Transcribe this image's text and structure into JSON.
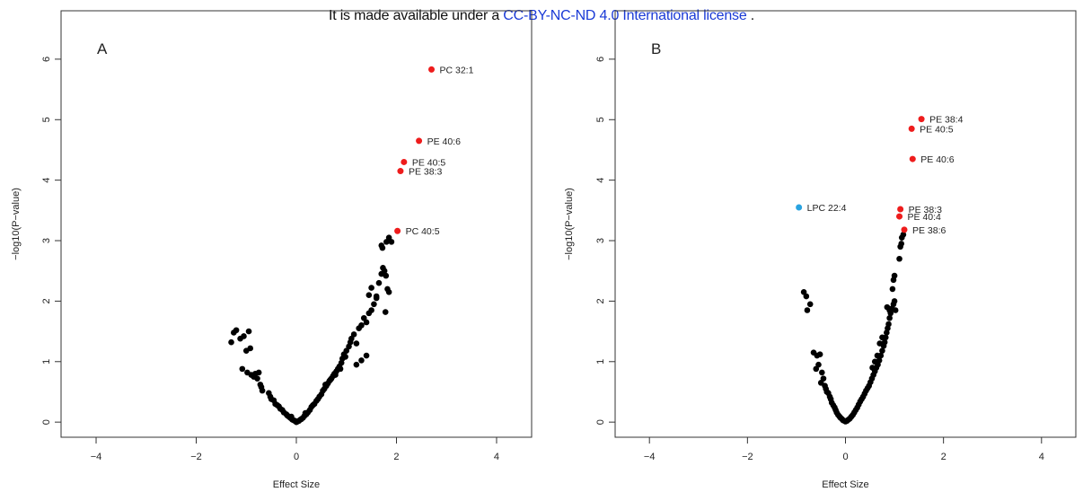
{
  "banner": {
    "prefix": "It is made available under a ",
    "link": "CC-BY-NC-ND 4.0 International license",
    "suffix": " ."
  },
  "colors": {
    "point": "#000000",
    "highlight_up": "#ee1c1c",
    "highlight_down": "#29a3e0"
  },
  "chart_data": [
    {
      "type": "scatter",
      "panel_label": "A",
      "xlabel": "Effect Size",
      "ylabel": "−log10(P−value)",
      "xlim": [
        -4.7,
        4.7
      ],
      "ylim": [
        -0.25,
        6.8
      ],
      "xticks": [
        -4,
        -2,
        0,
        2,
        4
      ],
      "yticks": [
        0,
        1,
        2,
        3,
        4,
        5,
        6
      ],
      "labeled_points": [
        {
          "label": "PC 32:1",
          "x": 2.7,
          "y": 5.83,
          "color": "#ee1c1c"
        },
        {
          "label": "PE 40:6",
          "x": 2.45,
          "y": 4.65,
          "color": "#ee1c1c"
        },
        {
          "label": "PE 40:5",
          "x": 2.15,
          "y": 4.3,
          "color": "#ee1c1c"
        },
        {
          "label": "PE 38:3",
          "x": 2.08,
          "y": 4.15,
          "color": "#ee1c1c"
        },
        {
          "label": "PC 40:5",
          "x": 2.02,
          "y": 3.16,
          "color": "#ee1c1c"
        }
      ],
      "points": [
        [
          -1.3,
          1.32
        ],
        [
          -1.25,
          1.48
        ],
        [
          -1.2,
          1.52
        ],
        [
          -1.12,
          1.38
        ],
        [
          -1.05,
          1.42
        ],
        [
          -1.0,
          1.18
        ],
        [
          -0.95,
          1.5
        ],
        [
          -0.92,
          1.22
        ],
        [
          -1.08,
          0.88
        ],
        [
          -0.98,
          0.82
        ],
        [
          -0.9,
          0.78
        ],
        [
          -0.85,
          0.75
        ],
        [
          -0.82,
          0.8
        ],
        [
          -0.78,
          0.72
        ],
        [
          -0.75,
          0.82
        ],
        [
          -0.72,
          0.62
        ],
        [
          -0.7,
          0.58
        ],
        [
          -0.68,
          0.52
        ],
        [
          -0.55,
          0.48
        ],
        [
          -0.52,
          0.42
        ],
        [
          -0.5,
          0.38
        ],
        [
          -0.45,
          0.36
        ],
        [
          -0.42,
          0.3
        ],
        [
          -0.38,
          0.28
        ],
        [
          -0.35,
          0.26
        ],
        [
          -0.32,
          0.22
        ],
        [
          -0.28,
          0.2
        ],
        [
          -0.25,
          0.16
        ],
        [
          -0.2,
          0.13
        ],
        [
          -0.18,
          0.11
        ],
        [
          -0.15,
          0.09
        ],
        [
          -0.12,
          0.07
        ],
        [
          -0.1,
          0.06
        ],
        [
          -0.08,
          0.04
        ],
        [
          -0.05,
          0.03
        ],
        [
          -0.03,
          0.02
        ],
        [
          0.0,
          0.01
        ],
        [
          0.02,
          0.01
        ],
        [
          0.05,
          0.02
        ],
        [
          0.08,
          0.04
        ],
        [
          0.1,
          0.05
        ],
        [
          0.13,
          0.07
        ],
        [
          0.16,
          0.1
        ],
        [
          0.2,
          0.13
        ],
        [
          0.23,
          0.16
        ],
        [
          0.27,
          0.2
        ],
        [
          0.3,
          0.25
        ],
        [
          0.33,
          0.28
        ],
        [
          0.36,
          0.3
        ],
        [
          0.4,
          0.35
        ],
        [
          0.43,
          0.38
        ],
        [
          0.46,
          0.42
        ],
        [
          0.5,
          0.46
        ],
        [
          0.53,
          0.52
        ],
        [
          0.56,
          0.55
        ],
        [
          0.6,
          0.6
        ],
        [
          0.63,
          0.64
        ],
        [
          0.66,
          0.68
        ],
        [
          0.7,
          0.72
        ],
        [
          0.73,
          0.76
        ],
        [
          0.76,
          0.8
        ],
        [
          0.8,
          0.84
        ],
        [
          0.83,
          0.88
        ],
        [
          0.86,
          0.92
        ],
        [
          0.9,
          0.98
        ],
        [
          0.92,
          1.05
        ],
        [
          0.95,
          1.12
        ],
        [
          0.98,
          1.08
        ],
        [
          1.0,
          1.18
        ],
        [
          1.05,
          1.25
        ],
        [
          1.08,
          1.32
        ],
        [
          1.1,
          1.38
        ],
        [
          1.15,
          1.45
        ],
        [
          1.2,
          1.3
        ],
        [
          1.25,
          1.55
        ],
        [
          1.3,
          1.6
        ],
        [
          1.35,
          1.72
        ],
        [
          1.4,
          1.65
        ],
        [
          1.45,
          1.8
        ],
        [
          1.5,
          1.85
        ],
        [
          1.3,
          1.02
        ],
        [
          1.4,
          1.1
        ],
        [
          1.2,
          0.95
        ],
        [
          1.45,
          2.1
        ],
        [
          1.5,
          2.22
        ],
        [
          1.55,
          1.95
        ],
        [
          1.6,
          2.05
        ],
        [
          1.65,
          2.3
        ],
        [
          1.7,
          2.45
        ],
        [
          1.73,
          2.55
        ],
        [
          1.76,
          2.5
        ],
        [
          1.79,
          2.42
        ],
        [
          1.82,
          2.2
        ],
        [
          1.85,
          2.15
        ],
        [
          1.7,
          2.92
        ],
        [
          1.72,
          2.88
        ],
        [
          1.8,
          2.98
        ],
        [
          1.85,
          3.05
        ],
        [
          1.9,
          2.98
        ],
        [
          1.78,
          1.82
        ],
        [
          1.6,
          2.08
        ],
        [
          0.0,
          0.0
        ],
        [
          -0.1,
          0.09
        ],
        [
          0.18,
          0.15
        ],
        [
          0.58,
          0.62
        ],
        [
          0.68,
          0.7
        ],
        [
          0.78,
          0.78
        ],
        [
          0.88,
          0.88
        ]
      ]
    },
    {
      "type": "scatter",
      "panel_label": "B",
      "xlabel": "Effect Size",
      "ylabel": "−log10(P−value)",
      "xlim": [
        -4.7,
        4.7
      ],
      "ylim": [
        -0.25,
        6.8
      ],
      "xticks": [
        -4,
        -2,
        0,
        2,
        4
      ],
      "yticks": [
        0,
        1,
        2,
        3,
        4,
        5,
        6
      ],
      "labeled_points": [
        {
          "label": "PE 38:4",
          "x": 1.55,
          "y": 5.01,
          "color": "#ee1c1c"
        },
        {
          "label": "PE 40:5",
          "x": 1.35,
          "y": 4.85,
          "color": "#ee1c1c"
        },
        {
          "label": "PE 40:6",
          "x": 1.37,
          "y": 4.35,
          "color": "#ee1c1c"
        },
        {
          "label": "LPC 22:4",
          "x": -0.95,
          "y": 3.55,
          "color": "#29a3e0"
        },
        {
          "label": "PE 38:3",
          "x": 1.12,
          "y": 3.52,
          "color": "#ee1c1c"
        },
        {
          "label": "PE 40:4",
          "x": 1.1,
          "y": 3.4,
          "color": "#ee1c1c"
        },
        {
          "label": "PE 38:6",
          "x": 1.2,
          "y": 3.18,
          "color": "#ee1c1c"
        }
      ],
      "points": [
        [
          -0.85,
          2.15
        ],
        [
          -0.8,
          2.08
        ],
        [
          -0.78,
          1.85
        ],
        [
          -0.72,
          1.95
        ],
        [
          -0.65,
          1.15
        ],
        [
          -0.58,
          1.1
        ],
        [
          -0.52,
          1.12
        ],
        [
          -0.55,
          0.95
        ],
        [
          -0.6,
          0.88
        ],
        [
          -0.48,
          0.82
        ],
        [
          -0.45,
          0.72
        ],
        [
          -0.5,
          0.65
        ],
        [
          -0.42,
          0.6
        ],
        [
          -0.4,
          0.55
        ],
        [
          -0.38,
          0.5
        ],
        [
          -0.35,
          0.48
        ],
        [
          -0.32,
          0.42
        ],
        [
          -0.3,
          0.38
        ],
        [
          -0.28,
          0.32
        ],
        [
          -0.25,
          0.28
        ],
        [
          -0.22,
          0.24
        ],
        [
          -0.2,
          0.2
        ],
        [
          -0.18,
          0.16
        ],
        [
          -0.15,
          0.12
        ],
        [
          -0.12,
          0.09
        ],
        [
          -0.1,
          0.07
        ],
        [
          -0.07,
          0.05
        ],
        [
          -0.05,
          0.03
        ],
        [
          -0.02,
          0.02
        ],
        [
          0.0,
          0.01
        ],
        [
          0.03,
          0.02
        ],
        [
          0.06,
          0.04
        ],
        [
          0.09,
          0.06
        ],
        [
          0.12,
          0.09
        ],
        [
          0.15,
          0.12
        ],
        [
          0.18,
          0.16
        ],
        [
          0.21,
          0.2
        ],
        [
          0.24,
          0.24
        ],
        [
          0.27,
          0.29
        ],
        [
          0.3,
          0.34
        ],
        [
          0.33,
          0.38
        ],
        [
          0.36,
          0.42
        ],
        [
          0.39,
          0.47
        ],
        [
          0.42,
          0.52
        ],
        [
          0.45,
          0.56
        ],
        [
          0.48,
          0.6
        ],
        [
          0.51,
          0.66
        ],
        [
          0.54,
          0.72
        ],
        [
          0.57,
          0.78
        ],
        [
          0.6,
          0.84
        ],
        [
          0.63,
          0.9
        ],
        [
          0.66,
          0.95
        ],
        [
          0.69,
          1.02
        ],
        [
          0.72,
          1.1
        ],
        [
          0.75,
          1.18
        ],
        [
          0.78,
          1.26
        ],
        [
          0.8,
          1.32
        ],
        [
          0.82,
          1.4
        ],
        [
          0.84,
          1.48
        ],
        [
          0.86,
          1.55
        ],
        [
          0.88,
          1.62
        ],
        [
          0.9,
          1.72
        ],
        [
          0.92,
          1.8
        ],
        [
          0.95,
          1.88
        ],
        [
          0.98,
          1.95
        ],
        [
          1.0,
          2.0
        ],
        [
          0.96,
          2.2
        ],
        [
          0.98,
          2.35
        ],
        [
          1.0,
          2.42
        ],
        [
          1.02,
          1.85
        ],
        [
          0.9,
          1.85
        ],
        [
          1.1,
          2.7
        ],
        [
          1.12,
          2.9
        ],
        [
          1.15,
          3.05
        ],
        [
          1.18,
          3.1
        ],
        [
          1.14,
          2.95
        ],
        [
          0.7,
          1.3
        ],
        [
          0.75,
          1.4
        ],
        [
          0.85,
          1.9
        ],
        [
          0.55,
          0.9
        ],
        [
          0.6,
          1.0
        ],
        [
          0.65,
          1.1
        ]
      ]
    }
  ]
}
